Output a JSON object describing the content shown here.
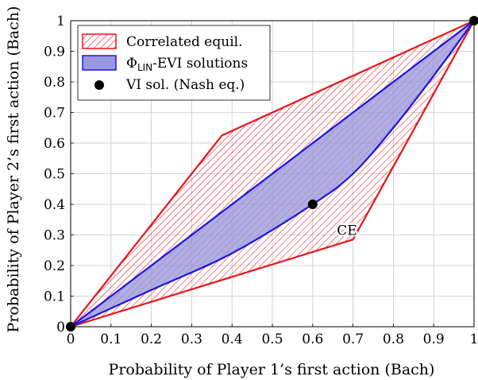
{
  "chart_data": {
    "type": "area",
    "title": "",
    "xlabel": "Probability of Player 1’s first action (Bach)",
    "ylabel": "Probability of Player 2’s first action (Bach)",
    "xlim": [
      0,
      1
    ],
    "ylim": [
      0,
      1
    ],
    "xticks": [
      "0",
      "0.1",
      "0.2",
      "0.3",
      "0.4",
      "0.5",
      "0.6",
      "0.7",
      "0.8",
      "0.9",
      "1"
    ],
    "yticks": [
      "0",
      "0.1",
      "0.2",
      "0.3",
      "0.4",
      "0.5",
      "0.6",
      "0.7",
      "0.8",
      "0.9",
      "1"
    ],
    "grid": true,
    "legend_position": "top-left",
    "series": [
      {
        "name": "Correlated equil.",
        "kind": "hatched-polygon",
        "color": "#e8141a",
        "points": [
          [
            0,
            0
          ],
          [
            0.375,
            0.625
          ],
          [
            1,
            1
          ],
          [
            0.7,
            0.285
          ],
          [
            0,
            0
          ]
        ]
      },
      {
        "name": "Φ_LIN-EVI solutions",
        "kind": "filled-band",
        "color": "#1a14e6",
        "fill": "#9999dd",
        "upper": [
          [
            0,
            0
          ],
          [
            0.2,
            0.2
          ],
          [
            0.4,
            0.4
          ],
          [
            0.6,
            0.6
          ],
          [
            0.8,
            0.8
          ],
          [
            1,
            1
          ]
        ],
        "lower": [
          [
            0,
            0
          ],
          [
            0.2,
            0.12
          ],
          [
            0.4,
            0.24
          ],
          [
            0.6,
            0.4
          ],
          [
            0.7,
            0.5
          ],
          [
            0.8,
            0.65
          ],
          [
            0.9,
            0.82
          ],
          [
            1,
            1
          ]
        ]
      },
      {
        "name": "VI sol. (Nash eq.)",
        "kind": "points",
        "color": "#000000",
        "points": [
          [
            0,
            0
          ],
          [
            0.6,
            0.4
          ],
          [
            1,
            1
          ]
        ]
      }
    ],
    "legend": [
      {
        "label": "Correlated equil."
      },
      {
        "label_prefix": "Φ",
        "label_sub": "LIN",
        "label_suffix": "-EVI solutions"
      },
      {
        "label": "VI sol. (Nash eq.)"
      }
    ],
    "annotations": [
      {
        "text": "CE",
        "x": 0.685,
        "y": 0.315,
        "color": "#e8141a"
      }
    ]
  }
}
